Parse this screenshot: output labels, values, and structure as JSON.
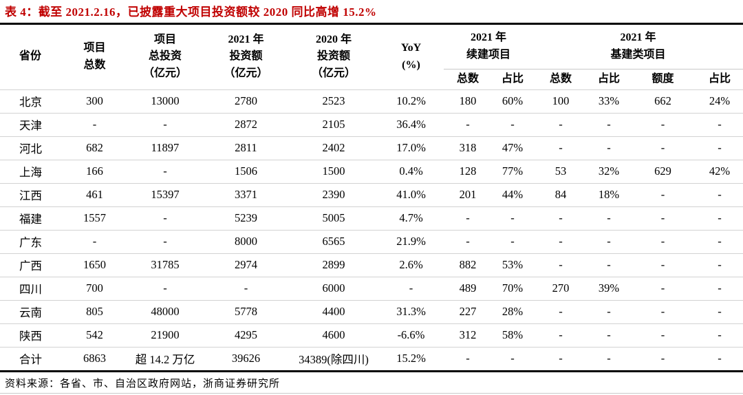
{
  "title": "表 4：截至 2021.2.16，已披露重大项目投资额较 2020 同比高增 15.2%",
  "colors": {
    "title_red": "#c00000",
    "heavy_rule": "#000000",
    "light_rule": "#d2d2d2"
  },
  "table": {
    "simple_headers": [
      {
        "lines": [
          "省份"
        ]
      },
      {
        "lines": [
          "项目",
          "总数"
        ]
      },
      {
        "lines": [
          "项目",
          "总投资",
          "（亿元）"
        ]
      },
      {
        "lines": [
          "2021 年",
          "投资额",
          "（亿元）"
        ]
      },
      {
        "lines": [
          "2020 年",
          "投资额",
          "（亿元）"
        ]
      },
      {
        "lines": [
          "YoY",
          "(%)"
        ]
      }
    ],
    "groups": [
      {
        "title_lines": [
          "2021 年",
          "续建项目"
        ],
        "subheaders": [
          "总数",
          "占比"
        ]
      },
      {
        "title_lines": [
          "2021 年",
          "基建类项目"
        ],
        "subheaders": [
          "总数",
          "占比",
          "额度",
          "占比"
        ]
      }
    ],
    "rows": [
      {
        "cells": [
          "北京",
          "300",
          "13000",
          "2780",
          "2523",
          "10.2%",
          "180",
          "60%",
          "100",
          "33%",
          "662",
          "24%"
        ]
      },
      {
        "cells": [
          "天津",
          "-",
          "-",
          "2872",
          "2105",
          "36.4%",
          "-",
          "-",
          "-",
          "-",
          "-",
          "-"
        ]
      },
      {
        "cells": [
          "河北",
          "682",
          "11897",
          "2811",
          "2402",
          "17.0%",
          "318",
          "47%",
          "-",
          "-",
          "-",
          "-"
        ]
      },
      {
        "cells": [
          "上海",
          "166",
          "-",
          "1506",
          "1500",
          "0.4%",
          "128",
          "77%",
          "53",
          "32%",
          "629",
          "42%"
        ]
      },
      {
        "cells": [
          "江西",
          "461",
          "15397",
          "3371",
          "2390",
          "41.0%",
          "201",
          "44%",
          "84",
          "18%",
          "-",
          "-"
        ]
      },
      {
        "cells": [
          "福建",
          "1557",
          "-",
          "5239",
          "5005",
          "4.7%",
          "-",
          "-",
          "-",
          "-",
          "-",
          "-"
        ]
      },
      {
        "cells": [
          "广东",
          "-",
          "-",
          "8000",
          "6565",
          "21.9%",
          "-",
          "-",
          "-",
          "-",
          "-",
          "-"
        ]
      },
      {
        "cells": [
          "广西",
          "1650",
          "31785",
          "2974",
          "2899",
          "2.6%",
          "882",
          "53%",
          "-",
          "-",
          "-",
          "-"
        ]
      },
      {
        "cells": [
          "四川",
          "700",
          "-",
          "-",
          "6000",
          "-",
          "489",
          "70%",
          "270",
          "39%",
          "-",
          "-"
        ]
      },
      {
        "cells": [
          "云南",
          "805",
          "48000",
          "5778",
          "4400",
          "31.3%",
          "227",
          "28%",
          "-",
          "-",
          "-",
          "-"
        ]
      },
      {
        "cells": [
          "陕西",
          "542",
          "21900",
          "4295",
          "4600",
          "-6.6%",
          "312",
          "58%",
          "-",
          "-",
          "-",
          "-"
        ]
      },
      {
        "cells": [
          "合计",
          "6863",
          "超 14.2 万亿",
          "39626",
          "34389(除四川)",
          "15.2%",
          "-",
          "-",
          "-",
          "-",
          "-",
          "-"
        ]
      }
    ]
  },
  "footer": {
    "source": "资料来源：各省、市、自治区政府网站，浙商证券研究所"
  }
}
